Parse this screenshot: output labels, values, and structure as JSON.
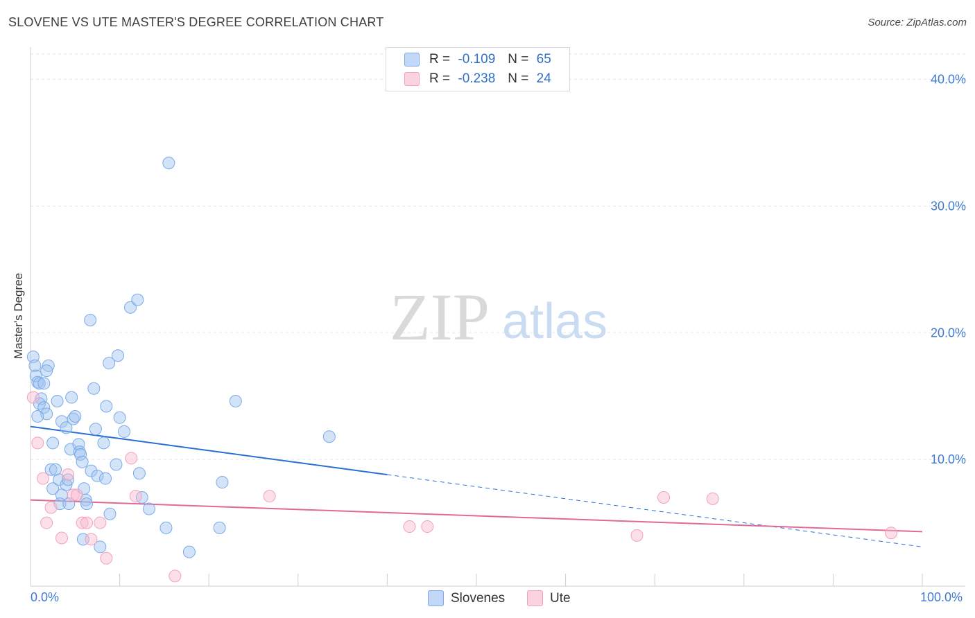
{
  "header": {
    "title": "SLOVENE VS UTE MASTER'S DEGREE CORRELATION CHART",
    "source": "Source: ZipAtlas.com"
  },
  "watermark": {
    "part1": "ZIP",
    "part2": "atlas"
  },
  "legend": {
    "rows": [
      {
        "r_label": "R =",
        "r_value": "-0.109",
        "n_label": "N =",
        "n_value": "65",
        "color": "#7aaae8"
      },
      {
        "r_label": "R =",
        "r_value": "-0.238",
        "n_label": "N =",
        "n_value": "24",
        "color": "#f3a1bb"
      }
    ]
  },
  "chart_data": {
    "type": "scatter",
    "title": "SLOVENE VS UTE MASTER'S DEGREE CORRELATION CHART",
    "xlabel": "",
    "ylabel": "Master's Degree",
    "xlim": [
      0,
      100
    ],
    "ylim": [
      0,
      42
    ],
    "x_tick_labels": [
      "0.0%",
      "100.0%"
    ],
    "y_ticks": [
      10,
      20,
      30,
      40
    ],
    "y_tick_labels": [
      "10.0%",
      "20.0%",
      "30.0%",
      "40.0%"
    ],
    "grid": true,
    "legend_position": "top-center",
    "series": [
      {
        "name": "Slovenes",
        "color": "#7aaae8",
        "line_color": "#2a6fd4",
        "trend": {
          "x0": 0,
          "y0": 12.6,
          "x1": 40,
          "y1": 8.8,
          "extend_to": 100,
          "extend_y": 3.1
        },
        "points": [
          [
            0.3,
            18.1
          ],
          [
            0.5,
            17.4
          ],
          [
            0.6,
            16.6
          ],
          [
            0.8,
            16.1
          ],
          [
            1.0,
            16.0
          ],
          [
            1.2,
            14.8
          ],
          [
            1.5,
            16.0
          ],
          [
            1.0,
            14.4
          ],
          [
            1.5,
            14.1
          ],
          [
            1.8,
            13.6
          ],
          [
            0.8,
            13.4
          ],
          [
            2.0,
            17.4
          ],
          [
            1.8,
            17.0
          ],
          [
            3.0,
            14.6
          ],
          [
            4.6,
            14.9
          ],
          [
            3.5,
            13.0
          ],
          [
            4.0,
            12.5
          ],
          [
            4.8,
            13.2
          ],
          [
            5.0,
            13.4
          ],
          [
            7.1,
            15.6
          ],
          [
            7.3,
            12.4
          ],
          [
            8.2,
            11.3
          ],
          [
            8.5,
            14.2
          ],
          [
            8.8,
            17.6
          ],
          [
            9.8,
            18.2
          ],
          [
            10.0,
            13.3
          ],
          [
            10.5,
            12.2
          ],
          [
            11.2,
            22.0
          ],
          [
            12.0,
            22.6
          ],
          [
            6.7,
            21.0
          ],
          [
            15.5,
            33.4
          ],
          [
            2.5,
            11.3
          ],
          [
            4.5,
            10.8
          ],
          [
            5.4,
            11.2
          ],
          [
            5.5,
            10.6
          ],
          [
            5.6,
            10.4
          ],
          [
            5.8,
            9.8
          ],
          [
            2.3,
            9.2
          ],
          [
            2.8,
            9.2
          ],
          [
            3.2,
            8.4
          ],
          [
            4.0,
            8.0
          ],
          [
            4.2,
            8.4
          ],
          [
            6.8,
            9.1
          ],
          [
            7.5,
            8.7
          ],
          [
            8.4,
            8.5
          ],
          [
            9.6,
            9.6
          ],
          [
            12.2,
            8.9
          ],
          [
            2.5,
            7.7
          ],
          [
            3.5,
            7.2
          ],
          [
            6.0,
            7.7
          ],
          [
            6.2,
            6.8
          ],
          [
            6.3,
            6.5
          ],
          [
            12.5,
            7.0
          ],
          [
            3.3,
            6.5
          ],
          [
            4.3,
            6.5
          ],
          [
            13.3,
            6.1
          ],
          [
            8.9,
            5.7
          ],
          [
            15.2,
            4.6
          ],
          [
            21.2,
            4.6
          ],
          [
            21.5,
            8.2
          ],
          [
            23.0,
            14.6
          ],
          [
            33.5,
            11.8
          ],
          [
            5.9,
            3.7
          ],
          [
            7.8,
            3.1
          ],
          [
            17.8,
            2.7
          ]
        ]
      },
      {
        "name": "Ute",
        "color": "#f3a1bb",
        "line_color": "#e06a95",
        "trend": {
          "x0": 0,
          "y0": 6.8,
          "x1": 100,
          "y1": 4.3
        },
        "points": [
          [
            0.3,
            14.9
          ],
          [
            0.8,
            11.3
          ],
          [
            1.4,
            8.5
          ],
          [
            1.8,
            5.0
          ],
          [
            2.3,
            6.2
          ],
          [
            3.5,
            3.8
          ],
          [
            4.2,
            8.8
          ],
          [
            4.8,
            7.2
          ],
          [
            5.2,
            7.2
          ],
          [
            5.8,
            5.0
          ],
          [
            6.3,
            5.0
          ],
          [
            6.8,
            3.7
          ],
          [
            7.8,
            5.0
          ],
          [
            8.5,
            2.2
          ],
          [
            11.3,
            10.1
          ],
          [
            11.8,
            7.1
          ],
          [
            16.2,
            0.8
          ],
          [
            26.8,
            7.1
          ],
          [
            42.5,
            4.7
          ],
          [
            44.5,
            4.7
          ],
          [
            68.0,
            4.0
          ],
          [
            71.0,
            7.0
          ],
          [
            76.5,
            6.9
          ],
          [
            96.5,
            4.2
          ]
        ]
      }
    ]
  }
}
